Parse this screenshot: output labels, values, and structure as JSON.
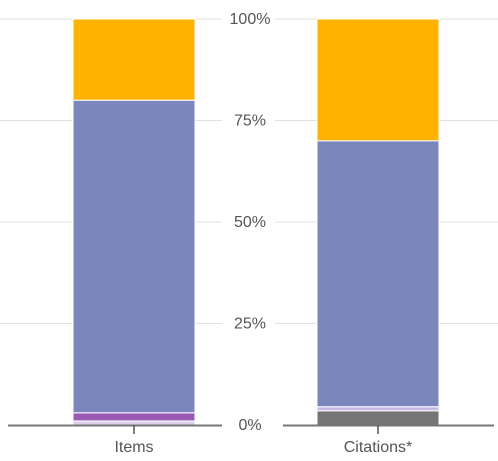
{
  "chart_data": {
    "type": "bar",
    "stacked": true,
    "percent": true,
    "categories": [
      "Items",
      "Citations*"
    ],
    "y_ticks": [
      "0%",
      "25%",
      "50%",
      "75%",
      "100%"
    ],
    "ylim": [
      0,
      100
    ],
    "grid": true,
    "series": [
      {
        "color": "#dcd0ee",
        "values": [
          1.0,
          0.0
        ]
      },
      {
        "color": "#9b59b6",
        "values": [
          2.0,
          0.0
        ]
      },
      {
        "color": "#757575",
        "values": [
          0.0,
          3.5
        ]
      },
      {
        "color": "#c9b8e6",
        "values": [
          0.0,
          1.0
        ]
      },
      {
        "color": "#7b86bd",
        "values": [
          77.0,
          65.5
        ]
      },
      {
        "color": "#ffb300",
        "values": [
          20.0,
          30.0
        ]
      }
    ]
  }
}
